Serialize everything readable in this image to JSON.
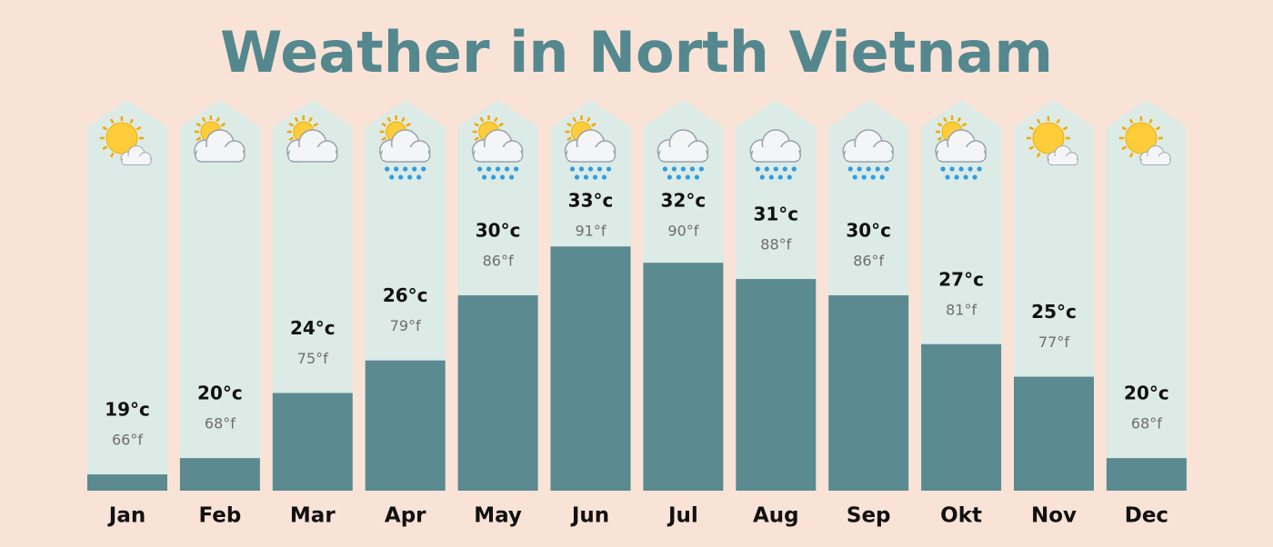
{
  "chart_data": {
    "type": "bar",
    "title": "Weather in North Vietnam",
    "categories": [
      "Jan",
      "Feb",
      "Mar",
      "Apr",
      "May",
      "Jun",
      "Jul",
      "Aug",
      "Sep",
      "Okt",
      "Nov",
      "Dec"
    ],
    "values": [
      19,
      20,
      24,
      26,
      30,
      33,
      32,
      31,
      30,
      27,
      25,
      20
    ],
    "value_labels": [
      "19°c",
      "20°c",
      "24°c",
      "26°c",
      "30°c",
      "33°c",
      "32°c",
      "31°c",
      "30°c",
      "27°c",
      "25°c",
      "20°c"
    ],
    "fahrenheit_labels": [
      "66°f",
      "68°f",
      "75°f",
      "79°f",
      "86°f",
      "91°f",
      "90°f",
      "88°f",
      "86°f",
      "81°f",
      "77°f",
      "68°f"
    ],
    "color": "#5b8a91",
    "ylim": [
      18,
      42
    ]
  }
}
